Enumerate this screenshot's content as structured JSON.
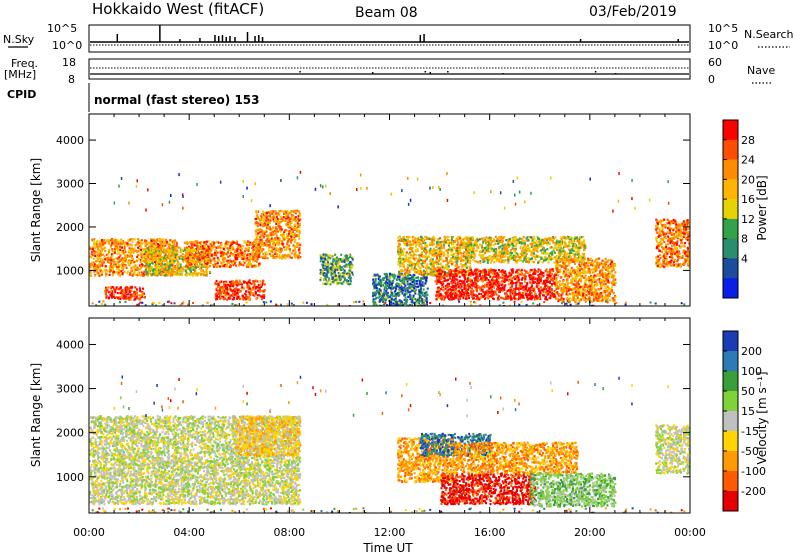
{
  "header": {
    "station": "Hokkaido West (fitACF)",
    "beam": "Beam 08",
    "date": "03/Feb/2019"
  },
  "top_panels": {
    "nsky_label": "N.Sky",
    "nsearch_label": "N.Search",
    "noise_ticks": [
      "10^5",
      "10^0"
    ],
    "freq_label_1": "Freq.",
    "freq_label_2": "[MHz]",
    "freq_ticks": [
      "18",
      "8"
    ],
    "nave_label": "Nave",
    "nave_ticks": [
      "60",
      "0"
    ],
    "cpid_label": "CPID",
    "cpid_text": "normal (fast stereo) 153"
  },
  "chart_data": [
    {
      "type": "heatmap",
      "name": "power",
      "ylabel": "Slant Range [km]",
      "xlabel": "Time UT",
      "x_ticks": [
        "00:00",
        "04:00",
        "08:00",
        "12:00",
        "16:00",
        "20:00",
        "00:00"
      ],
      "y_ticks": [
        "1000",
        "2000",
        "3000",
        "4000"
      ],
      "xlim": [
        0,
        24
      ],
      "ylim": [
        180,
        4600
      ],
      "colorbar": {
        "label": "Power [dB]",
        "ticks": [
          "28",
          "24",
          "20",
          "16",
          "12",
          "8",
          "4"
        ],
        "colors": [
          "#ff0000",
          "#ff4d00",
          "#ff8c00",
          "#ffb400",
          "#e6d200",
          "#33a24a",
          "#2c8c6e",
          "#1c4c9c",
          "#0a1ee6"
        ]
      },
      "regions": [
        {
          "t0": 0.0,
          "t1": 3.5,
          "r0": 900,
          "r1": 1750,
          "p": 0.7
        },
        {
          "t0": 0.6,
          "t1": 2.2,
          "r0": 350,
          "r1": 650,
          "p": 0.92
        },
        {
          "t0": 2.2,
          "t1": 4.8,
          "r0": 900,
          "r1": 1550,
          "p": 0.55
        },
        {
          "t0": 3.8,
          "t1": 6.8,
          "r0": 1100,
          "r1": 1700,
          "p": 0.75
        },
        {
          "t0": 5.0,
          "t1": 7.0,
          "r0": 350,
          "r1": 800,
          "p": 0.88
        },
        {
          "t0": 6.6,
          "t1": 8.4,
          "r0": 1300,
          "r1": 2400,
          "p": 0.7
        },
        {
          "t0": 9.2,
          "t1": 10.5,
          "r0": 700,
          "r1": 1400,
          "p": 0.35
        },
        {
          "t0": 11.3,
          "t1": 13.5,
          "r0": 200,
          "r1": 950,
          "p": 0.25
        },
        {
          "t0": 12.3,
          "t1": 15.2,
          "r0": 900,
          "r1": 1800,
          "p": 0.6
        },
        {
          "t0": 13.8,
          "t1": 18.6,
          "r0": 350,
          "r1": 1050,
          "p": 0.95
        },
        {
          "t0": 15.0,
          "t1": 19.8,
          "r0": 1200,
          "r1": 1800,
          "p": 0.55
        },
        {
          "t0": 18.6,
          "t1": 21.0,
          "r0": 300,
          "r1": 1300,
          "p": 0.7
        },
        {
          "t0": 22.6,
          "t1": 24.0,
          "r0": 1100,
          "r1": 2200,
          "p": 0.75
        }
      ]
    },
    {
      "type": "heatmap",
      "name": "velocity",
      "ylabel": "Slant Range [km]",
      "xlabel": "Time UT",
      "x_ticks": [
        "00:00",
        "04:00",
        "08:00",
        "12:00",
        "16:00",
        "20:00",
        "00:00"
      ],
      "y_ticks": [
        "1000",
        "2000",
        "3000",
        "4000"
      ],
      "xlim": [
        0,
        24
      ],
      "ylim": [
        180,
        4600
      ],
      "colorbar": {
        "label": "Velocity [m s⁻¹]",
        "ticks": [
          "200",
          "100",
          "50",
          "15",
          "-15",
          "-50",
          "-100",
          "-200"
        ],
        "colors": [
          "#1a3cb4",
          "#2c7bb6",
          "#3a9e3a",
          "#7fd23a",
          "#c0c0c0",
          "#ffd400",
          "#ff9a00",
          "#ff5a00",
          "#e60000"
        ]
      },
      "regions": [
        {
          "t0": 0.0,
          "t1": 8.4,
          "r0": 400,
          "r1": 2400,
          "v": 4
        },
        {
          "t0": 5.8,
          "t1": 8.4,
          "r0": 1500,
          "r1": 2400,
          "v": 5
        },
        {
          "t0": 12.3,
          "t1": 14.5,
          "r0": 900,
          "r1": 1900,
          "v": 6
        },
        {
          "t0": 13.2,
          "t1": 16.0,
          "r0": 1500,
          "r1": 2000,
          "v": 1
        },
        {
          "t0": 14.0,
          "t1": 17.8,
          "r0": 400,
          "r1": 1100,
          "v": 8
        },
        {
          "t0": 14.5,
          "t1": 19.5,
          "r0": 1100,
          "r1": 1800,
          "v": 6
        },
        {
          "t0": 17.6,
          "t1": 21.0,
          "r0": 350,
          "r1": 1100,
          "v": 3
        },
        {
          "t0": 22.6,
          "t1": 24.0,
          "r0": 1100,
          "r1": 2200,
          "v": 4
        }
      ]
    }
  ]
}
